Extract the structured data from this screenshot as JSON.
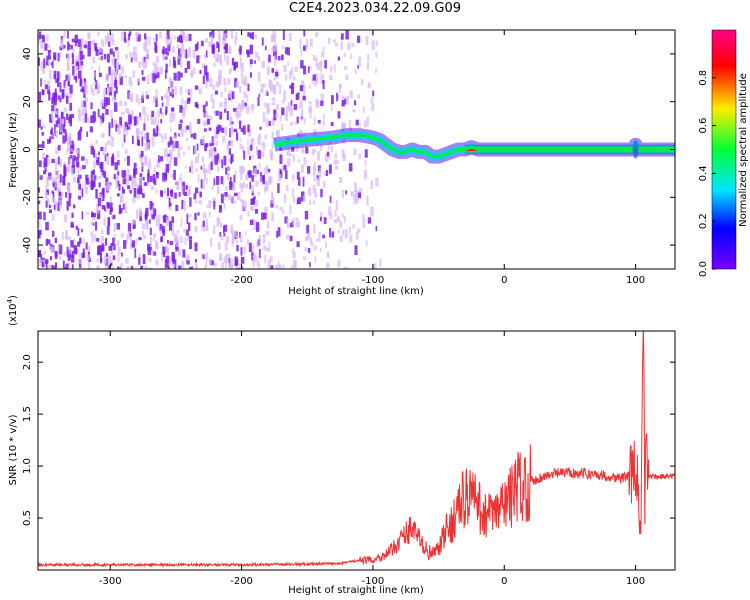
{
  "title": "C2E4.2023.034.22.09.G09",
  "colors": {
    "snr_line": "#ee3333",
    "spectrogram_noise": "#7b1ee8",
    "spectrogram_noise_light": "#d9b8f8",
    "signal_core": "#ee2222",
    "signal_halo": "#00ee44",
    "colorbar_stops": [
      "#7a00ff",
      "#0000ff",
      "#00e5ff",
      "#00ff33",
      "#ffee00",
      "#ff0000",
      "#ff0088"
    ]
  },
  "chart_data": [
    {
      "type": "heatmap",
      "xlabel": "Height of straight line (km)",
      "ylabel": "Frequency (Hz)",
      "xlim": [
        -355,
        130
      ],
      "ylim": [
        -50,
        50
      ],
      "x_ticks": [
        -300,
        -200,
        -100,
        0,
        100
      ],
      "x_tick_labels": [
        "-300",
        "-200",
        "-100",
        "0",
        "100"
      ],
      "y_ticks": [
        -40,
        -20,
        0,
        20,
        40
      ],
      "y_tick_labels": [
        "-40",
        "-20",
        "0",
        "20",
        "40"
      ],
      "noise_region_x": [
        -355,
        -95
      ],
      "signal_trace": {
        "x": [
          -175,
          -150,
          -130,
          -120,
          -110,
          -100,
          -95,
          -90,
          -85,
          -80,
          -75,
          -70,
          -65,
          -60,
          -55,
          -50,
          -45,
          -40,
          -35,
          -30,
          -25,
          -20,
          0,
          50,
          98,
          100,
          102,
          130
        ],
        "y": [
          2,
          4,
          5,
          6,
          6,
          5,
          4,
          2,
          0,
          -1,
          -1,
          0,
          -1,
          -1,
          -3,
          -3,
          -2,
          -1,
          0,
          0,
          1,
          0,
          0,
          0,
          0,
          2,
          0,
          0
        ]
      },
      "colorbar": {
        "label": "Normalized spectral amplitude",
        "range": [
          0,
          1
        ],
        "ticks": [
          0.0,
          0.2,
          0.4,
          0.6,
          0.8
        ],
        "tick_labels": [
          "0.0",
          "0.2",
          "0.4",
          "0.6",
          "0.8"
        ]
      }
    },
    {
      "type": "line",
      "xlabel": "Height of straight line (km)",
      "ylabel": "SNR (10 * v/v)",
      "y_multiplier_label": "(x10",
      "y_multiplier_exponent": "4",
      "y_multiplier_close": ")",
      "xlim": [
        -355,
        130
      ],
      "ylim": [
        0,
        23000
      ],
      "x_ticks": [
        -300,
        -200,
        -100,
        0,
        100
      ],
      "x_tick_labels": [
        "-300",
        "-200",
        "-100",
        "0",
        "100"
      ],
      "y_ticks": [
        5000,
        10000,
        15000,
        20000
      ],
      "y_tick_labels": [
        "0.5",
        "1.0",
        "1.5",
        "2.0"
      ],
      "series": [
        {
          "x": [
            -355,
            -300,
            -200,
            -130,
            -110,
            -100,
            -95,
            -90,
            -85,
            -80,
            -75,
            -70,
            -65,
            -60,
            -55,
            -50,
            -45,
            -40,
            -35,
            -30,
            -25,
            -20,
            -15,
            -10,
            -5,
            0,
            5,
            10,
            20,
            30,
            40,
            50,
            60,
            70,
            80,
            90,
            95,
            100,
            102,
            104,
            105,
            106,
            107,
            108,
            110,
            120,
            130
          ],
          "y": [
            500,
            500,
            500,
            600,
            900,
            1000,
            1200,
            1500,
            2000,
            2800,
            3500,
            4200,
            3000,
            2000,
            1500,
            2000,
            3500,
            4500,
            6000,
            7000,
            7500,
            6000,
            5500,
            5200,
            5500,
            6500,
            7000,
            8000,
            8500,
            9000,
            9300,
            9400,
            9300,
            9200,
            9000,
            8800,
            9200,
            9500,
            8000,
            2000,
            16000,
            22000,
            6000,
            12000,
            9000,
            9000,
            9000
          ]
        }
      ]
    }
  ]
}
